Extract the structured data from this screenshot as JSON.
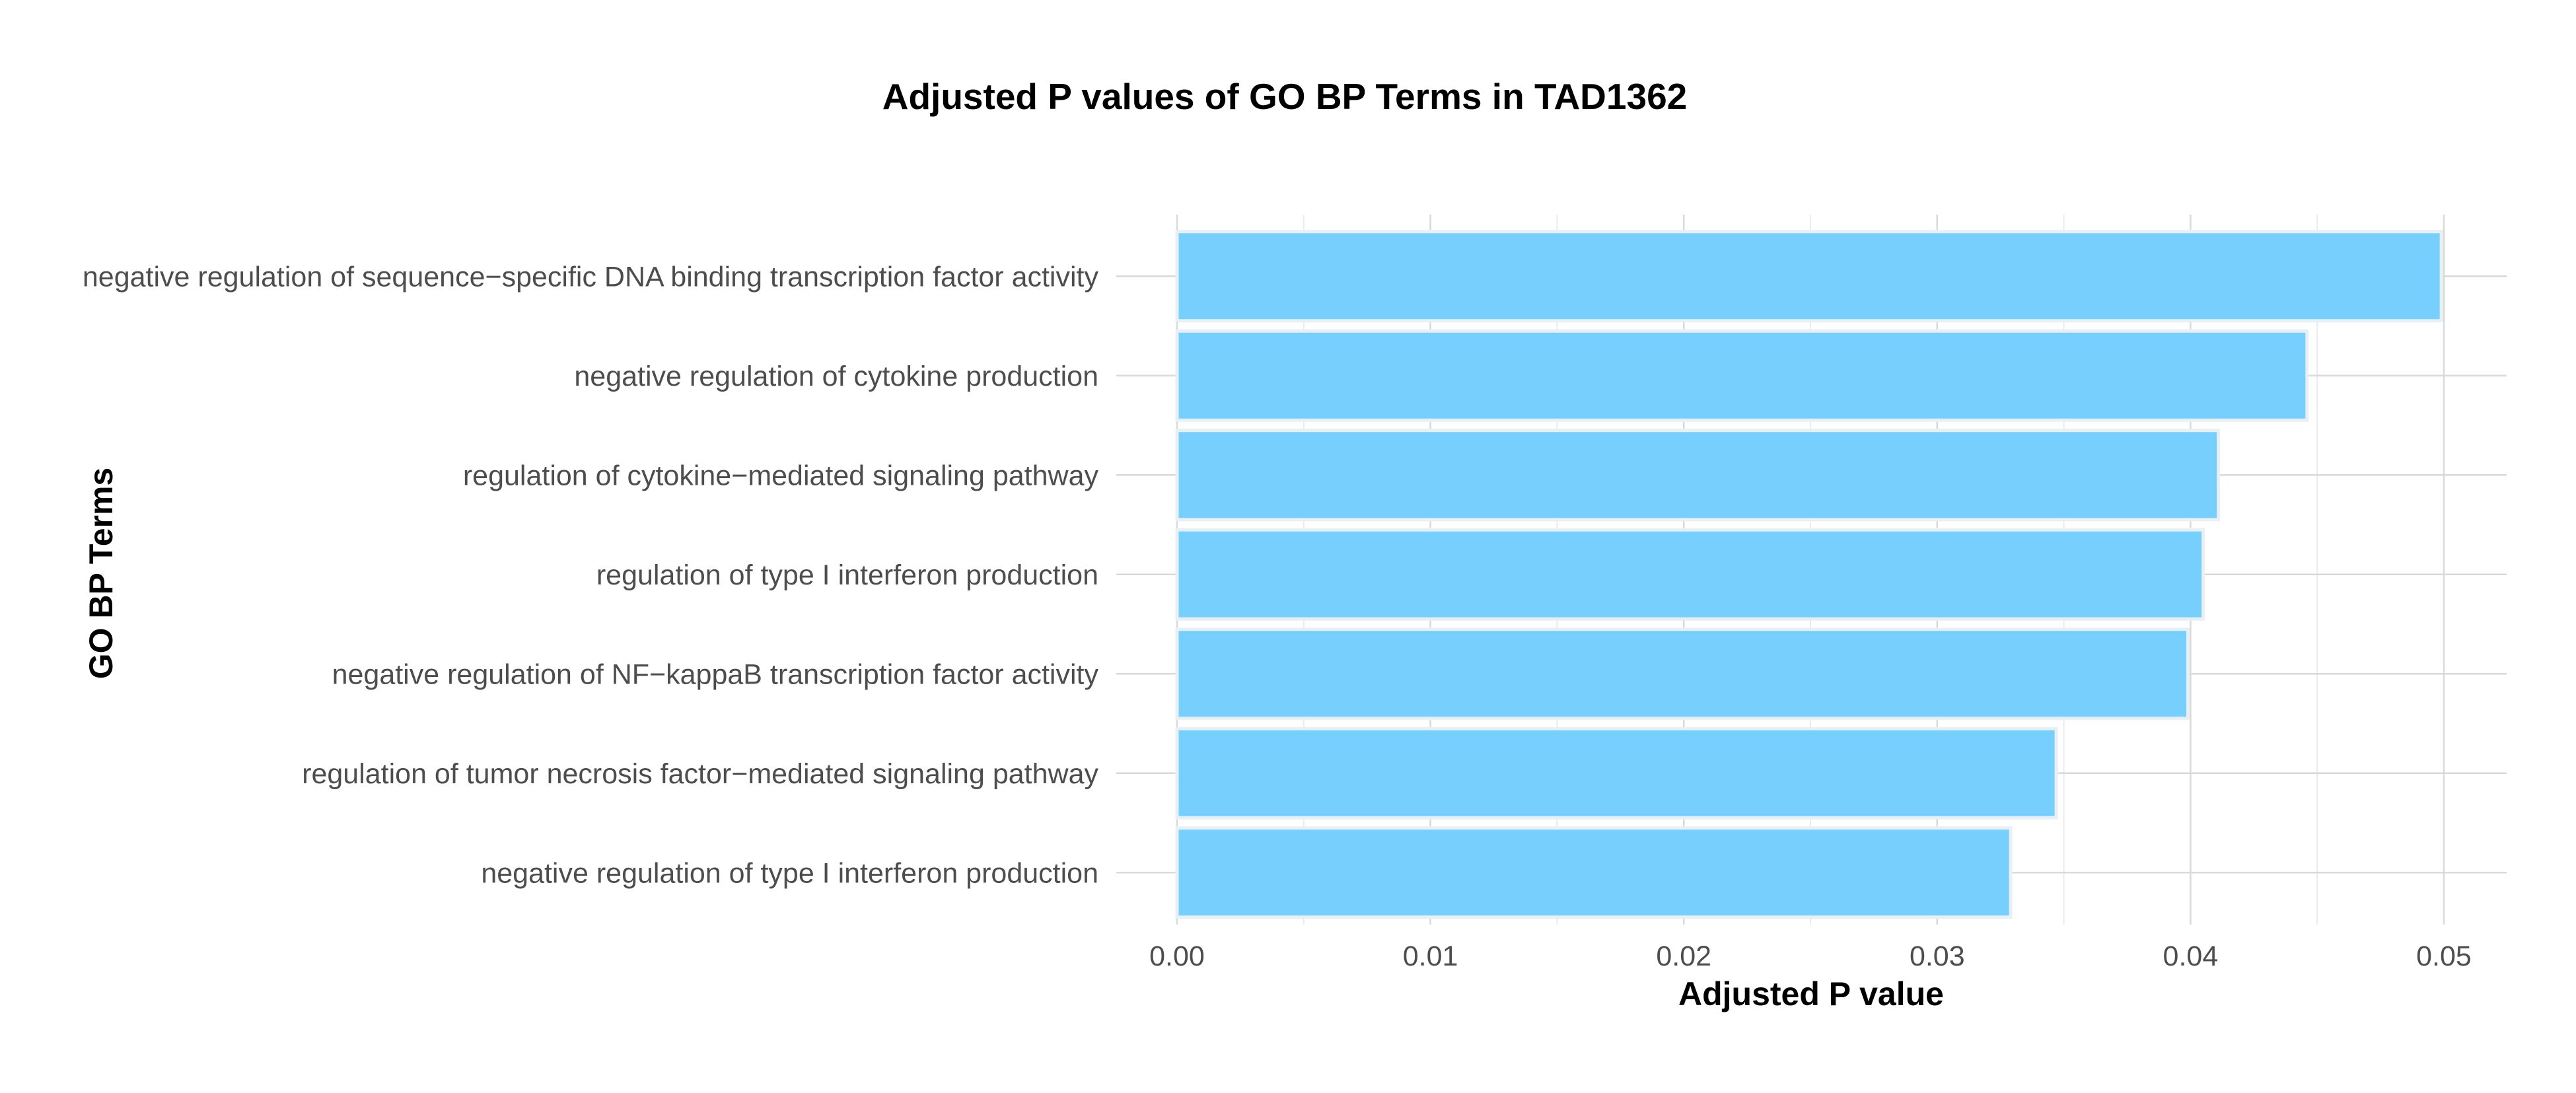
{
  "chart_data": {
    "type": "bar",
    "orientation": "horizontal",
    "title": "Adjusted P values of GO BP Terms in TAD1362",
    "xlabel": "Adjusted P value",
    "ylabel": "GO BP Terms",
    "categories": [
      "negative regulation of sequence−specific DNA binding transcription factor activity",
      "negative regulation of cytokine production",
      "regulation of cytokine−mediated signaling pathway",
      "regulation of type I interferon production",
      "negative regulation of NF−kappaB transcription factor activity",
      "regulation of tumor necrosis factor−mediated signaling pathway",
      "negative regulation of type I interferon production"
    ],
    "values": [
      0.0499,
      0.0446,
      0.0411,
      0.0405,
      0.0399,
      0.0347,
      0.0329
    ],
    "xlim": [
      0,
      0.0525
    ],
    "x_ticks": [
      0.0,
      0.01,
      0.02,
      0.03,
      0.04,
      0.05
    ],
    "x_tick_labels": [
      "0.00",
      "0.01",
      "0.02",
      "0.03",
      "0.04",
      "0.05"
    ],
    "grid": true,
    "legend": "none",
    "colors": {
      "bar_fill": "#76CFFC",
      "bar_stroke": "#E8F0F5",
      "grid_major": "#D9D9D9",
      "grid_minor": "#EBEBEB",
      "tick_text": "#4D4D4D",
      "title_text": "#000000"
    }
  }
}
